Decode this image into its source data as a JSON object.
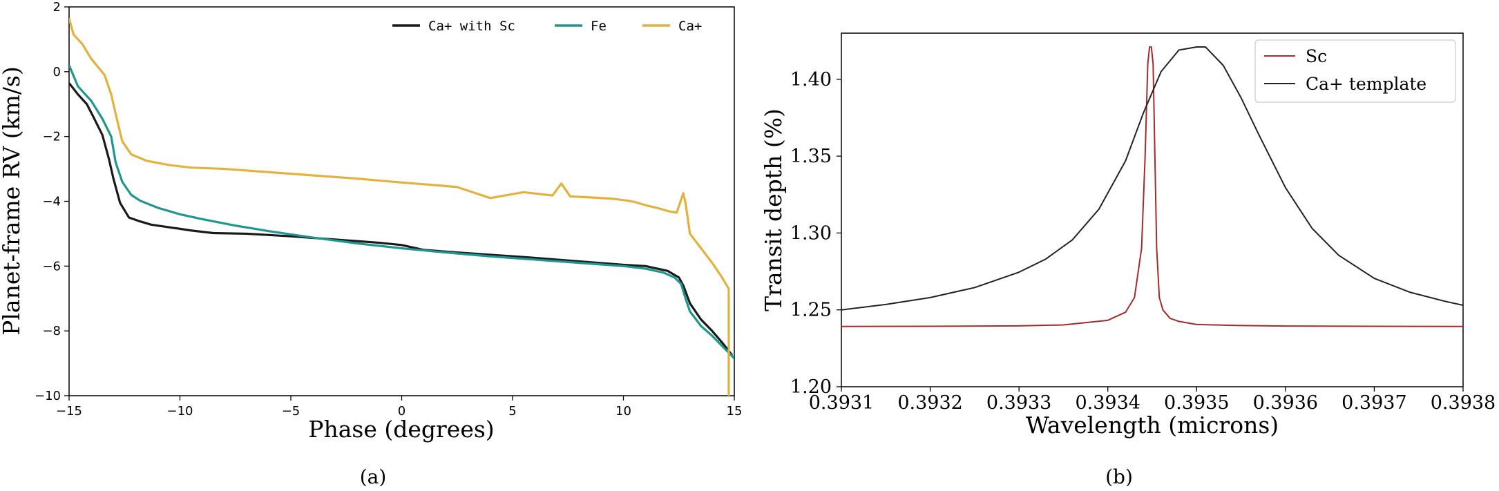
{
  "chart_data": [
    {
      "type": "line",
      "caption": "(a)",
      "xlabel": "Phase (degrees)",
      "ylabel": "Planet-frame RV (km/s)",
      "xlim": [
        -15,
        15
      ],
      "ylim": [
        -10,
        2
      ],
      "xticks": [
        -15,
        -10,
        -5,
        0,
        5,
        10,
        15
      ],
      "xtick_labels": [
        "−15",
        "−10",
        "−5",
        "0",
        "5",
        "10",
        "15"
      ],
      "yticks": [
        -10,
        -8,
        -6,
        -4,
        -2,
        0,
        2
      ],
      "ytick_labels": [
        "−10",
        "−8",
        "−6",
        "−4",
        "−2",
        "0",
        "2"
      ],
      "legend_position": "top-right",
      "series": [
        {
          "name": "Ca+ with Sc",
          "color": "#1a1a1a",
          "x": [
            -15,
            -14.6,
            -14.2,
            -13.9,
            -13.5,
            -13.2,
            -13.0,
            -12.7,
            -12.3,
            -11.8,
            -11.3,
            -10.5,
            -9.5,
            -8.5,
            -7.0,
            -5.0,
            -3.0,
            -1.0,
            0.0,
            1.0,
            2.5,
            4.0,
            5.5,
            7.0,
            8.5,
            10.0,
            11.0,
            12.0,
            12.5,
            12.7,
            13.0,
            13.5,
            14.0,
            14.5,
            14.9
          ],
          "y": [
            -0.35,
            -0.7,
            -1.0,
            -1.4,
            -1.95,
            -2.7,
            -3.3,
            -4.05,
            -4.5,
            -4.62,
            -4.72,
            -4.8,
            -4.9,
            -4.98,
            -5.0,
            -5.08,
            -5.18,
            -5.28,
            -5.35,
            -5.5,
            -5.58,
            -5.65,
            -5.72,
            -5.8,
            -5.88,
            -5.96,
            -6.0,
            -6.15,
            -6.35,
            -6.6,
            -7.15,
            -7.65,
            -8.0,
            -8.4,
            -8.75
          ]
        },
        {
          "name": "Fe",
          "color": "#1f968f",
          "x": [
            -15,
            -14.6,
            -14.0,
            -13.5,
            -13.1,
            -12.9,
            -12.6,
            -12.2,
            -11.8,
            -11.0,
            -10.0,
            -9.0,
            -7.5,
            -6.0,
            -4.0,
            -2.0,
            0.0,
            2.0,
            4.0,
            6.0,
            8.0,
            10.0,
            11.0,
            11.8,
            12.3,
            12.6,
            12.8,
            13.0,
            13.5,
            14.0,
            14.5,
            15.0
          ],
          "y": [
            0.2,
            -0.45,
            -0.9,
            -1.45,
            -2.0,
            -2.8,
            -3.4,
            -3.8,
            -3.98,
            -4.2,
            -4.4,
            -4.55,
            -4.75,
            -4.92,
            -5.12,
            -5.3,
            -5.45,
            -5.58,
            -5.7,
            -5.8,
            -5.9,
            -6.0,
            -6.08,
            -6.2,
            -6.35,
            -6.55,
            -7.0,
            -7.4,
            -7.85,
            -8.15,
            -8.5,
            -8.85
          ]
        },
        {
          "name": "Ca+",
          "color": "#e3b23c",
          "x": [
            -15,
            -14.8,
            -14.4,
            -14.0,
            -13.4,
            -13.1,
            -12.9,
            -12.6,
            -12.2,
            -11.5,
            -10.5,
            -9.5,
            -8.0,
            -6.0,
            -4.0,
            -2.0,
            0.0,
            1.5,
            2.5,
            3.2,
            4.0,
            5.5,
            6.8,
            7.2,
            7.6,
            8.5,
            9.5,
            10.2,
            10.5,
            11.0,
            11.5,
            12.0,
            12.4,
            12.7,
            12.8,
            13.0,
            13.5,
            14.0,
            14.4,
            14.75,
            14.75
          ],
          "y": [
            1.65,
            1.15,
            0.85,
            0.4,
            -0.1,
            -0.7,
            -1.3,
            -2.15,
            -2.55,
            -2.75,
            -2.88,
            -2.96,
            -3.0,
            -3.1,
            -3.2,
            -3.3,
            -3.42,
            -3.5,
            -3.56,
            -3.72,
            -3.9,
            -3.72,
            -3.82,
            -3.45,
            -3.85,
            -3.88,
            -3.92,
            -3.98,
            -4.02,
            -4.12,
            -4.2,
            -4.3,
            -4.35,
            -3.75,
            -4.05,
            -5.0,
            -5.45,
            -5.9,
            -6.3,
            -6.7,
            -10.0
          ]
        }
      ]
    },
    {
      "type": "line",
      "caption": "(b)",
      "xlabel": "Wavelength (microns)",
      "ylabel": "Transit depth (%)",
      "xlim": [
        0.3931,
        0.3938
      ],
      "ylim": [
        1.2,
        1.43
      ],
      "xticks": [
        0.3931,
        0.3932,
        0.3933,
        0.3934,
        0.3935,
        0.3936,
        0.3937,
        0.3938
      ],
      "xtick_labels": [
        "0.3931",
        "0.3932",
        "0.3933",
        "0.3934",
        "0.3935",
        "0.3936",
        "0.3937",
        "0.3938"
      ],
      "yticks": [
        1.2,
        1.25,
        1.3,
        1.35,
        1.4
      ],
      "ytick_labels": [
        "1.20",
        "1.25",
        "1.30",
        "1.35",
        "1.40"
      ],
      "legend_position": "top-right",
      "series": [
        {
          "name": "Sc",
          "color": "#a52a2a",
          "x": [
            0.3931,
            0.3932,
            0.3933,
            0.39335,
            0.3934,
            0.39342,
            0.39343,
            0.393438,
            0.393442,
            0.393445,
            0.393447,
            0.393449,
            0.393451,
            0.393453,
            0.393455,
            0.393458,
            0.393462,
            0.39347,
            0.39348,
            0.3935,
            0.39355,
            0.3936,
            0.3937,
            0.3938
          ],
          "y": [
            1.2392,
            1.2393,
            1.2396,
            1.2402,
            1.2432,
            1.2485,
            1.258,
            1.29,
            1.35,
            1.41,
            1.421,
            1.421,
            1.41,
            1.35,
            1.29,
            1.258,
            1.25,
            1.2445,
            1.2425,
            1.2405,
            1.2398,
            1.2395,
            1.2393,
            1.2392
          ]
        },
        {
          "name": "Ca+ template",
          "color": "#222222",
          "x": [
            0.3931,
            0.39315,
            0.3932,
            0.39325,
            0.3933,
            0.39333,
            0.39336,
            0.39339,
            0.39342,
            0.39344,
            0.39346,
            0.39348,
            0.3935,
            0.39351,
            0.39353,
            0.39355,
            0.39357,
            0.3936,
            0.39363,
            0.39366,
            0.3937,
            0.39374,
            0.39378,
            0.3938
          ],
          "y": [
            1.25,
            1.2535,
            1.258,
            1.2645,
            1.2745,
            1.283,
            1.2955,
            1.3155,
            1.347,
            1.378,
            1.405,
            1.419,
            1.421,
            1.421,
            1.409,
            1.388,
            1.364,
            1.3295,
            1.303,
            1.2855,
            1.2705,
            1.2615,
            1.2555,
            1.253
          ]
        }
      ]
    }
  ]
}
